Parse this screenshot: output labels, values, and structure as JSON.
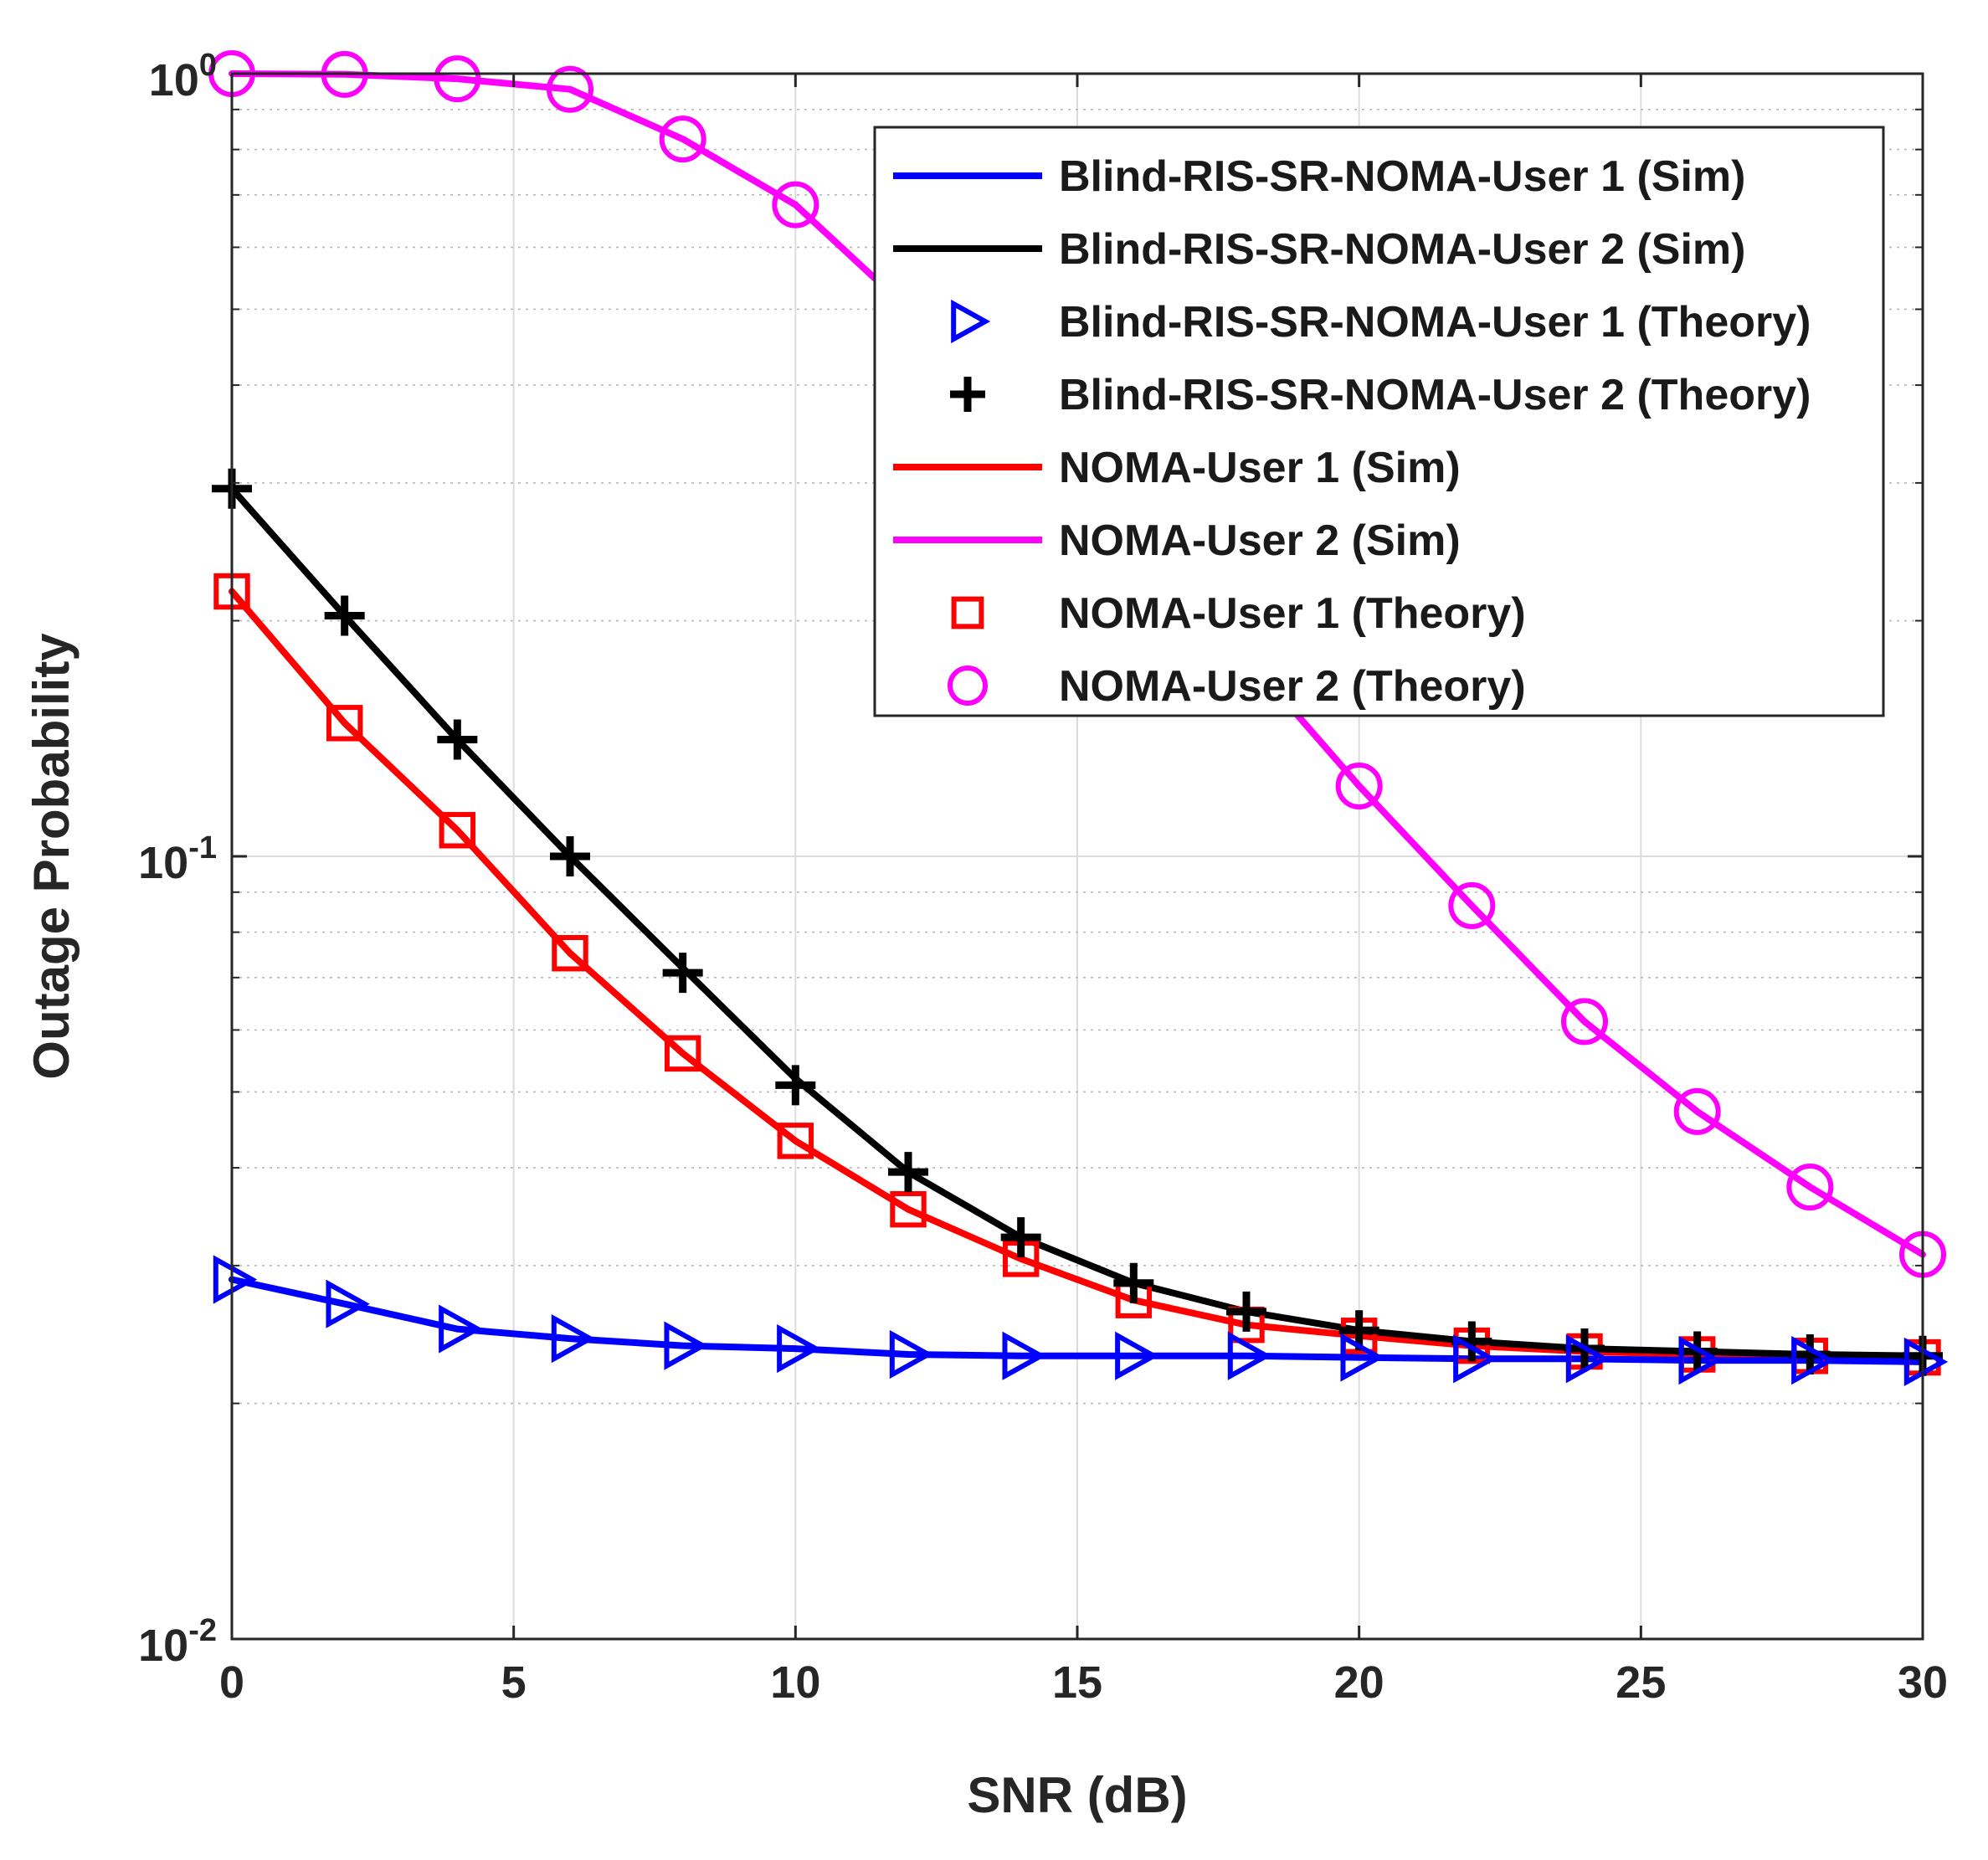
{
  "chart_data": {
    "type": "line",
    "title": "",
    "xlabel": "SNR (dB)",
    "ylabel": "Outage Probability",
    "xlim": [
      0,
      30
    ],
    "ylim": [
      0.01,
      1
    ],
    "yscale": "log",
    "grid": true,
    "legend_position": "top-right",
    "x_ticks": [
      {
        "value": 0,
        "label": "0"
      },
      {
        "value": 5,
        "label": "5"
      },
      {
        "value": 10,
        "label": "10"
      },
      {
        "value": 15,
        "label": "15"
      },
      {
        "value": 20,
        "label": "20"
      },
      {
        "value": 25,
        "label": "25"
      },
      {
        "value": 30,
        "label": "30"
      }
    ],
    "y_ticks": [
      {
        "value": 0.01,
        "base": "10",
        "exp": "-2"
      },
      {
        "value": 0.1,
        "base": "10",
        "exp": "-1"
      },
      {
        "value": 1,
        "base": "10",
        "exp": "0"
      }
    ],
    "x": [
      0,
      2,
      4,
      6,
      8,
      10,
      12,
      14,
      16,
      18,
      20,
      22,
      24,
      26,
      28,
      30
    ],
    "series": [
      {
        "name": "Blind-RIS-SR-NOMA-User 1 (Sim)",
        "style": "line",
        "color": "#0000ff",
        "values": [
          0.0288,
          0.0268,
          0.0249,
          0.0242,
          0.0237,
          0.0235,
          0.0231,
          0.023,
          0.023,
          0.023,
          0.0229,
          0.0228,
          0.0228,
          0.0227,
          0.0227,
          0.0226
        ]
      },
      {
        "name": "Blind-RIS-SR-NOMA-User 2 (Sim)",
        "style": "line",
        "color": "#000000",
        "values": [
          0.295,
          0.203,
          0.141,
          0.1,
          0.072,
          0.052,
          0.0395,
          0.0326,
          0.0285,
          0.0262,
          0.0248,
          0.024,
          0.0235,
          0.0233,
          0.0231,
          0.023
        ]
      },
      {
        "name": "Blind-RIS-SR-NOMA-User 1 (Theory)",
        "style": "marker",
        "marker": "triangle-right",
        "color": "#0000ff",
        "values": [
          0.0288,
          0.0268,
          0.0249,
          0.0242,
          0.0237,
          0.0235,
          0.0231,
          0.023,
          0.023,
          0.023,
          0.0229,
          0.0228,
          0.0228,
          0.0227,
          0.0227,
          0.0226
        ]
      },
      {
        "name": "Blind-RIS-SR-NOMA-User 2 (Theory)",
        "style": "marker",
        "marker": "plus",
        "color": "#000000",
        "values": [
          0.295,
          0.203,
          0.141,
          0.1,
          0.071,
          0.051,
          0.0395,
          0.0326,
          0.0285,
          0.0262,
          0.0248,
          0.024,
          0.0235,
          0.0233,
          0.0231,
          0.023
        ]
      },
      {
        "name": "NOMA-User 1 (Sim)",
        "style": "line",
        "color": "#ff0000",
        "values": [
          0.218,
          0.148,
          0.108,
          0.0752,
          0.056,
          0.0433,
          0.0354,
          0.0306,
          0.0271,
          0.0252,
          0.0244,
          0.0237,
          0.0233,
          0.0231,
          0.023,
          0.0229
        ]
      },
      {
        "name": "NOMA-User 2 (Sim)",
        "style": "line",
        "color": "#ff00ff",
        "values": [
          1.0,
          0.998,
          0.985,
          0.955,
          0.825,
          0.68,
          0.5,
          0.36,
          0.26,
          0.18,
          0.123,
          0.0865,
          0.0615,
          0.0472,
          0.0378,
          0.031
        ]
      },
      {
        "name": "NOMA-User 1 (Theory)",
        "style": "marker",
        "marker": "square",
        "color": "#ff0000",
        "values": [
          0.218,
          0.148,
          0.108,
          0.0752,
          0.056,
          0.0433,
          0.0354,
          0.0306,
          0.0271,
          0.0252,
          0.0244,
          0.0237,
          0.0233,
          0.0231,
          0.023,
          0.0229
        ]
      },
      {
        "name": "NOMA-User 2 (Theory)",
        "style": "marker",
        "marker": "circle",
        "color": "#ff00ff",
        "values": [
          1.0,
          0.998,
          0.985,
          0.955,
          0.825,
          0.68,
          0.5,
          0.36,
          0.26,
          0.18,
          0.123,
          0.0865,
          0.0615,
          0.0472,
          0.0378,
          0.031
        ]
      }
    ]
  }
}
